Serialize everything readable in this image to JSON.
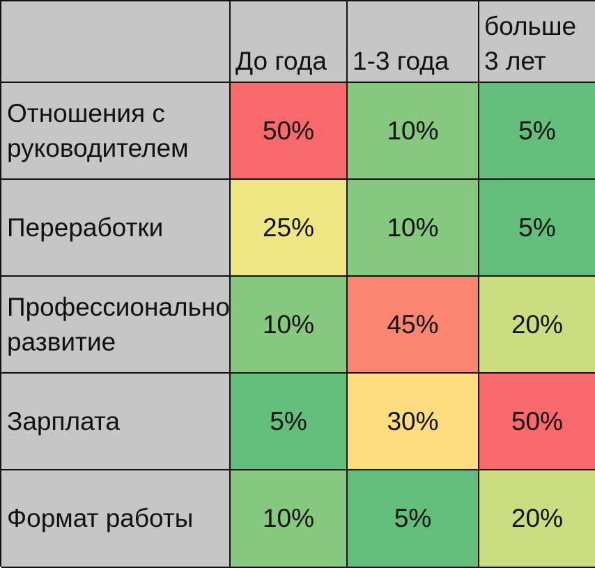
{
  "chart_data": {
    "type": "heatmap",
    "columns": [
      "До года",
      "1-3 года",
      "больше 3 лет"
    ],
    "rows": [
      "Отношения с руководителем",
      "Переработки",
      "Профессиональное развитие",
      "Зарплата",
      "Формат работы"
    ],
    "values": [
      [
        50,
        10,
        5
      ],
      [
        25,
        10,
        5
      ],
      [
        10,
        45,
        20
      ],
      [
        5,
        30,
        50
      ],
      [
        10,
        5,
        20
      ]
    ],
    "value_labels": [
      [
        "50%",
        "10%",
        "5%"
      ],
      [
        "25%",
        "10%",
        "5%"
      ],
      [
        "10%",
        "45%",
        "20%"
      ],
      [
        "5%",
        "30%",
        "50%"
      ],
      [
        "10%",
        "5%",
        "20%"
      ]
    ],
    "unit": "%",
    "color_scale": {
      "low": "#63be7b",
      "mid": "#ffeb84",
      "high": "#f8696b"
    },
    "colors": {
      "header_bg": "#c6c6c6",
      "grid": "#111111",
      "text": "#111111"
    }
  }
}
